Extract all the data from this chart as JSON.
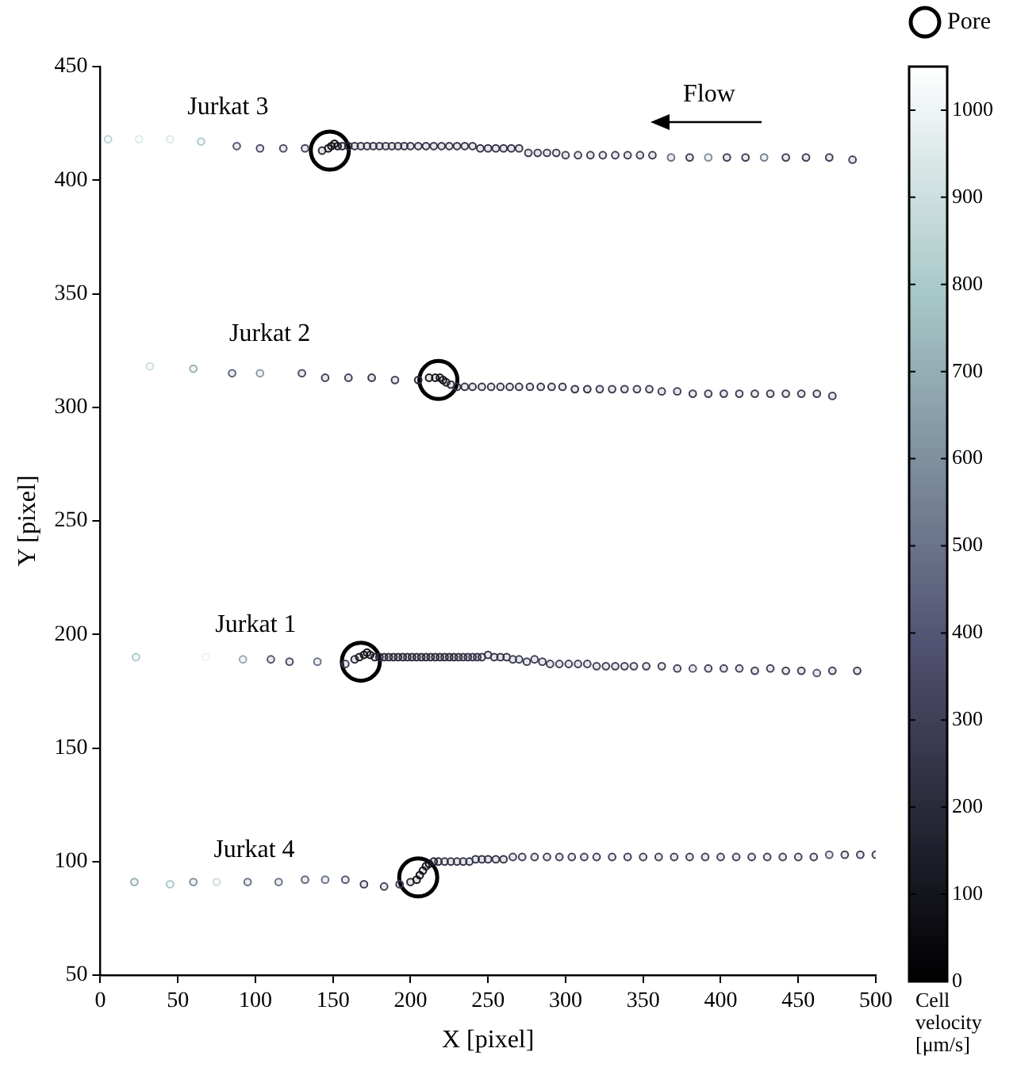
{
  "chart_data": {
    "type": "scatter",
    "xlabel": "X [pixel]",
    "ylabel": "Y [pixel]",
    "clabel": "Cell velocity [μm/s]",
    "xlim": [
      0,
      500
    ],
    "xticks": [
      0,
      50,
      100,
      150,
      200,
      250,
      300,
      350,
      400,
      450,
      500
    ],
    "ylim": [
      50,
      450
    ],
    "yticks": [
      50,
      100,
      150,
      200,
      250,
      300,
      350,
      400,
      450
    ],
    "clim": [
      0,
      1050
    ],
    "cticks": [
      0,
      100,
      200,
      300,
      400,
      500,
      600,
      700,
      800,
      900,
      1000
    ],
    "grid": false,
    "legend": "top right",
    "marker": "circle",
    "annotations": [
      "Flow"
    ],
    "series": [
      {
        "name": "Jurkat 3",
        "x": [
          5,
          25,
          45,
          65,
          88,
          103,
          118,
          132,
          143,
          147,
          149,
          151,
          153,
          156,
          160,
          164,
          168,
          172,
          176,
          180,
          184,
          188,
          192,
          196,
          200,
          205,
          210,
          215,
          220,
          225,
          230,
          235,
          240,
          245,
          250,
          255,
          260,
          265,
          270,
          276,
          282,
          288,
          294,
          300,
          308,
          316,
          324,
          332,
          340,
          348,
          356,
          368,
          380,
          392,
          404,
          416,
          428,
          442,
          455,
          470,
          485
        ],
        "values": [
          418,
          418,
          418,
          417,
          415,
          414,
          414,
          414,
          413,
          414,
          415,
          416,
          415,
          415,
          415,
          415,
          415,
          415,
          415,
          415,
          415,
          415,
          415,
          415,
          415,
          415,
          415,
          415,
          415,
          415,
          415,
          415,
          415,
          414,
          414,
          414,
          414,
          414,
          414,
          412,
          412,
          412,
          412,
          411,
          411,
          411,
          411,
          411,
          411,
          411,
          411,
          410,
          410,
          410,
          410,
          410,
          410,
          410,
          410,
          410,
          409
        ],
        "cvalues": [
          850,
          950,
          950,
          800,
          400,
          350,
          350,
          300,
          200,
          100,
          80,
          80,
          100,
          150,
          200,
          250,
          250,
          250,
          250,
          250,
          250,
          250,
          250,
          250,
          250,
          250,
          250,
          250,
          250,
          250,
          250,
          250,
          250,
          250,
          250,
          250,
          250,
          250,
          250,
          300,
          300,
          300,
          300,
          300,
          300,
          300,
          300,
          300,
          300,
          300,
          300,
          500,
          300,
          600,
          300,
          300,
          550,
          300,
          300,
          300,
          300
        ],
        "colors": [
          "#bcd4d5",
          "#deeaea",
          "#deeaea",
          "#accaca",
          "#555675",
          "#4a4a67",
          "#4a4a67",
          "#404059",
          "#2a2a3b",
          "#15151e",
          "#111118",
          "#111118",
          "#15151e",
          "#20202c",
          "#2a2a3b",
          "#35354a",
          "#35354a",
          "#35354a",
          "#35354a",
          "#35354a",
          "#35354a",
          "#35354a",
          "#35354a",
          "#35354a",
          "#35354a",
          "#35354a",
          "#35354a",
          "#35354a",
          "#35354a",
          "#35354a",
          "#35354a",
          "#35354a",
          "#35354a",
          "#35354a",
          "#35354a",
          "#35354a",
          "#35354a",
          "#35354a",
          "#35354a",
          "#404059",
          "#404059",
          "#404059",
          "#404059",
          "#404059",
          "#404059",
          "#404059",
          "#404059",
          "#404059",
          "#404059",
          "#404059",
          "#404059",
          "#6a738a",
          "#404059",
          "#7f919f",
          "#404059",
          "#404059",
          "#758295",
          "#404059",
          "#404059",
          "#404059",
          "#404059"
        ]
      },
      {
        "name": "Jurkat 2",
        "x": [
          32,
          60,
          85,
          103,
          130,
          145,
          160,
          175,
          190,
          205,
          212,
          216,
          219,
          221,
          223,
          226,
          230,
          235,
          240,
          246,
          252,
          258,
          264,
          270,
          277,
          284,
          291,
          298,
          306,
          314,
          322,
          330,
          338,
          346,
          354,
          362,
          372,
          382,
          392,
          402,
          412,
          422,
          432,
          442,
          452,
          462,
          472
        ],
        "values": [
          318,
          317,
          315,
          315,
          315,
          313,
          313,
          313,
          312,
          312,
          313,
          313,
          313,
          312,
          311,
          310,
          309,
          309,
          309,
          309,
          309,
          309,
          309,
          309,
          309,
          309,
          309,
          309,
          308,
          308,
          308,
          308,
          308,
          308,
          308,
          307,
          307,
          306,
          306,
          306,
          306,
          306,
          306,
          306,
          306,
          306,
          305
        ],
        "cvalues": [
          900,
          700,
          450,
          650,
          350,
          300,
          300,
          250,
          300,
          200,
          100,
          100,
          100,
          100,
          120,
          200,
          250,
          250,
          250,
          250,
          250,
          250,
          250,
          250,
          250,
          250,
          250,
          250,
          250,
          250,
          300,
          300,
          300,
          300,
          300,
          300,
          300,
          300,
          300,
          300,
          300,
          300,
          300,
          300,
          300,
          300,
          300
        ],
        "colors": [
          "#cddfe0",
          "#95aeb5",
          "#60657f",
          "#8a9faa",
          "#4a4a67",
          "#404059",
          "#404059",
          "#35354a",
          "#404059",
          "#2a2a3b",
          "#15151e",
          "#15151e",
          "#15151e",
          "#15151e",
          "#191923",
          "#2a2a3b",
          "#35354a",
          "#35354a",
          "#35354a",
          "#35354a",
          "#35354a",
          "#35354a",
          "#35354a",
          "#35354a",
          "#35354a",
          "#35354a",
          "#35354a",
          "#35354a",
          "#35354a",
          "#35354a",
          "#404059",
          "#404059",
          "#404059",
          "#404059",
          "#404059",
          "#404059",
          "#404059",
          "#404059",
          "#404059",
          "#404059",
          "#404059",
          "#404059",
          "#404059",
          "#404059",
          "#404059",
          "#404059",
          "#404059"
        ]
      },
      {
        "name": "Jurkat 1",
        "x": [
          23,
          68,
          92,
          110,
          122,
          140,
          158,
          164,
          167,
          170,
          172,
          174,
          177,
          180,
          183,
          186,
          189,
          192,
          195,
          198,
          201,
          204,
          207,
          210,
          213,
          216,
          219,
          222,
          225,
          228,
          231,
          234,
          237,
          240,
          243,
          246,
          250,
          254,
          258,
          262,
          266,
          270,
          275,
          280,
          285,
          290,
          296,
          302,
          308,
          314,
          320,
          326,
          332,
          338,
          344,
          352,
          362,
          372,
          382,
          392,
          402,
          412,
          422,
          432,
          442,
          452,
          462,
          472,
          488
        ],
        "values": [
          190,
          190,
          189,
          189,
          188,
          188,
          187,
          189,
          190,
          191,
          192,
          191,
          190,
          190,
          190,
          190,
          190,
          190,
          190,
          190,
          190,
          190,
          190,
          190,
          190,
          190,
          190,
          190,
          190,
          190,
          190,
          190,
          190,
          190,
          190,
          190,
          191,
          190,
          190,
          190,
          189,
          189,
          188,
          189,
          188,
          187,
          187,
          187,
          187,
          187,
          186,
          186,
          186,
          186,
          186,
          186,
          186,
          185,
          185,
          185,
          185,
          185,
          184,
          185,
          184,
          184,
          183,
          184,
          184
        ],
        "cvalues": [
          800,
          1000,
          700,
          400,
          350,
          500,
          300,
          200,
          100,
          80,
          80,
          100,
          150,
          200,
          200,
          200,
          200,
          200,
          200,
          200,
          200,
          200,
          200,
          200,
          200,
          200,
          200,
          200,
          200,
          200,
          250,
          250,
          250,
          250,
          250,
          250,
          250,
          250,
          250,
          250,
          300,
          300,
          300,
          300,
          300,
          300,
          300,
          300,
          300,
          300,
          300,
          300,
          300,
          300,
          300,
          300,
          300,
          300,
          400,
          300,
          300,
          300,
          300,
          300,
          300,
          300,
          400,
          300,
          300
        ],
        "colors": [
          "#accaca",
          "#eef4f5",
          "#95aeb5",
          "#555675",
          "#4a4a67",
          "#6a738a",
          "#404059",
          "#2a2a3b",
          "#15151e",
          "#111118",
          "#111118",
          "#15151e",
          "#20202c",
          "#2a2a3b",
          "#2a2a3b",
          "#2a2a3b",
          "#2a2a3b",
          "#2a2a3b",
          "#2a2a3b",
          "#2a2a3b",
          "#2a2a3b",
          "#2a2a3b",
          "#2a2a3b",
          "#2a2a3b",
          "#2a2a3b",
          "#2a2a3b",
          "#2a2a3b",
          "#2a2a3b",
          "#2a2a3b",
          "#2a2a3b",
          "#35354a",
          "#35354a",
          "#35354a",
          "#35354a",
          "#35354a",
          "#35354a",
          "#35354a",
          "#35354a",
          "#35354a",
          "#35354a",
          "#404059",
          "#404059",
          "#404059",
          "#404059",
          "#404059",
          "#404059",
          "#404059",
          "#404059",
          "#404059",
          "#404059",
          "#404059",
          "#404059",
          "#404059",
          "#404059",
          "#404059",
          "#404059",
          "#404059",
          "#404059",
          "#555675",
          "#404059",
          "#404059",
          "#404059",
          "#404059",
          "#404059",
          "#404059",
          "#404059",
          "#555675",
          "#404059",
          "#404059"
        ]
      },
      {
        "name": "Jurkat 4",
        "x": [
          22,
          45,
          60,
          75,
          95,
          115,
          132,
          145,
          158,
          170,
          183,
          193,
          200,
          204,
          206,
          208,
          210,
          212,
          215,
          218,
          222,
          226,
          230,
          234,
          238,
          242,
          246,
          250,
          255,
          260,
          266,
          272,
          280,
          288,
          296,
          304,
          312,
          320,
          330,
          340,
          350,
          360,
          370,
          380,
          390,
          400,
          410,
          420,
          430,
          440,
          450,
          460,
          470,
          480,
          490,
          500
        ],
        "values": [
          91,
          90,
          91,
          91,
          91,
          91,
          92,
          92,
          92,
          90,
          89,
          90,
          91,
          92,
          94,
          96,
          98,
          99,
          100,
          100,
          100,
          100,
          100,
          100,
          100,
          101,
          101,
          101,
          101,
          101,
          102,
          102,
          102,
          102,
          102,
          102,
          102,
          102,
          102,
          102,
          102,
          102,
          102,
          102,
          102,
          102,
          102,
          102,
          102,
          102,
          102,
          102,
          103,
          103,
          103,
          103
        ],
        "cvalues": [
          700,
          800,
          600,
          900,
          500,
          500,
          450,
          500,
          400,
          300,
          300,
          300,
          200,
          100,
          80,
          80,
          100,
          100,
          150,
          200,
          250,
          250,
          250,
          250,
          250,
          250,
          250,
          250,
          250,
          250,
          300,
          300,
          300,
          300,
          300,
          300,
          300,
          300,
          300,
          300,
          300,
          300,
          300,
          300,
          300,
          300,
          300,
          300,
          300,
          300,
          300,
          300,
          400,
          300,
          300,
          300
        ],
        "colors": [
          "#95aeb5",
          "#accaca",
          "#7f919f",
          "#cddfe0",
          "#6a738a",
          "#6a738a",
          "#60657f",
          "#6a738a",
          "#555675",
          "#404059",
          "#404059",
          "#404059",
          "#2a2a3b",
          "#15151e",
          "#111118",
          "#111118",
          "#15151e",
          "#15151e",
          "#20202c",
          "#2a2a3b",
          "#35354a",
          "#35354a",
          "#35354a",
          "#35354a",
          "#35354a",
          "#35354a",
          "#35354a",
          "#35354a",
          "#35354a",
          "#35354a",
          "#404059",
          "#404059",
          "#404059",
          "#404059",
          "#404059",
          "#404059",
          "#404059",
          "#404059",
          "#404059",
          "#404059",
          "#404059",
          "#404059",
          "#404059",
          "#404059",
          "#404059",
          "#404059",
          "#404059",
          "#404059",
          "#404059",
          "#404059",
          "#404059",
          "#404059",
          "#555675",
          "#404059",
          "#404059",
          "#404059"
        ]
      },
      {
        "name": "Pore",
        "type": "scatter",
        "marker": "circle",
        "color": "#000000",
        "x": [
          148,
          218,
          168,
          205
        ],
        "values": [
          413,
          312,
          188,
          93
        ]
      }
    ]
  }
}
